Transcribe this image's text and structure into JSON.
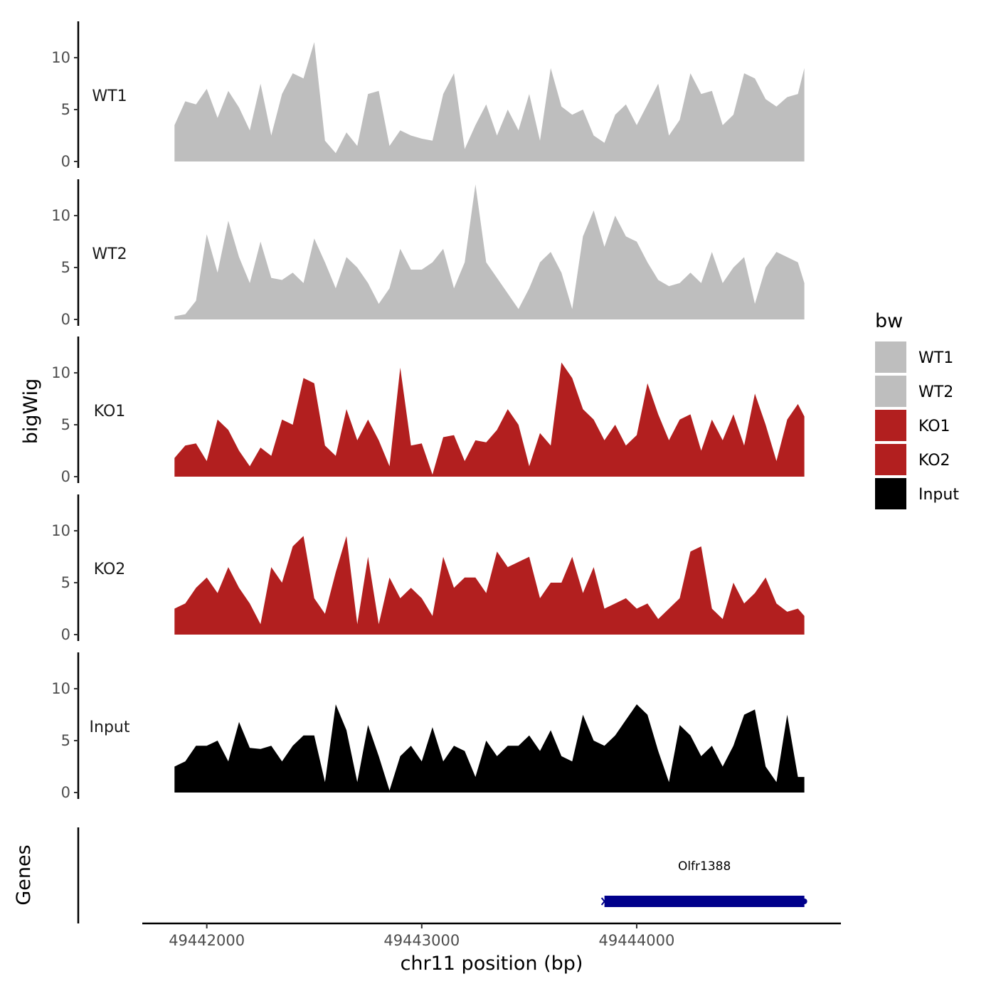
{
  "chart_data": {
    "type": "area",
    "ylabel": "bigWig",
    "xlabel": "chr11 position (bp)",
    "xlim": [
      49441700,
      49444950
    ],
    "ylim": [
      0,
      13.5
    ],
    "y_ticks": [
      0,
      5,
      10
    ],
    "x_ticks": [
      49442000,
      49443000,
      49444000
    ],
    "x_tick_labels": [
      "49442000",
      "49443000",
      "49444000"
    ],
    "gene_panel_label": "Genes",
    "legend": {
      "title": "bw",
      "position": "right",
      "entries": [
        {
          "name": "WT1",
          "color": "#bebebe"
        },
        {
          "name": "WT2",
          "color": "#bebebe"
        },
        {
          "name": "KO1",
          "color": "#b21f1f"
        },
        {
          "name": "KO2",
          "color": "#b21f1f"
        },
        {
          "name": "Input",
          "color": "#000000"
        }
      ]
    },
    "x": [
      49441850,
      49441900,
      49441950,
      49442000,
      49442050,
      49442100,
      49442150,
      49442200,
      49442250,
      49442300,
      49442350,
      49442400,
      49442450,
      49442500,
      49442550,
      49442600,
      49442650,
      49442700,
      49442750,
      49442800,
      49442850,
      49442900,
      49442950,
      49443000,
      49443050,
      49443100,
      49443150,
      49443200,
      49443250,
      49443300,
      49443350,
      49443400,
      49443450,
      49443500,
      49443550,
      49443600,
      49443650,
      49443700,
      49443750,
      49443800,
      49443850,
      49443900,
      49443950,
      49444000,
      49444050,
      49444100,
      49444150,
      49444200,
      49444250,
      49444300,
      49444350,
      49444400,
      49444450,
      49444500,
      49444550,
      49444600,
      49444650,
      49444700,
      49444750,
      49444780
    ],
    "series": [
      {
        "name": "WT1",
        "color": "#bebebe",
        "values": [
          3.5,
          5.8,
          5.5,
          7.0,
          4.2,
          6.8,
          5.2,
          3.0,
          7.5,
          2.5,
          6.5,
          8.5,
          8.0,
          11.5,
          2.0,
          0.8,
          2.8,
          1.5,
          6.5,
          6.8,
          1.5,
          3.0,
          2.5,
          2.2,
          2.0,
          6.5,
          8.5,
          1.2,
          3.5,
          5.5,
          2.5,
          5.0,
          3.0,
          6.5,
          2.0,
          9.0,
          5.3,
          4.5,
          5.0,
          2.5,
          1.8,
          4.5,
          5.5,
          3.5,
          5.5,
          7.5,
          2.5,
          4.0,
          8.5,
          6.5,
          6.8,
          3.5,
          4.5,
          8.5,
          8.0,
          6.0,
          5.3,
          6.2,
          6.5,
          9.0
        ]
      },
      {
        "name": "WT2",
        "color": "#bebebe",
        "values": [
          0.3,
          0.5,
          1.8,
          8.2,
          4.5,
          9.5,
          6.0,
          3.5,
          7.5,
          4.0,
          3.8,
          4.5,
          3.5,
          7.8,
          5.5,
          3.0,
          6.0,
          5.0,
          3.5,
          1.5,
          3.0,
          6.8,
          4.8,
          4.8,
          5.5,
          6.8,
          3.0,
          5.5,
          13.0,
          5.5,
          4.0,
          2.5,
          1.0,
          3.0,
          5.5,
          6.5,
          4.5,
          1.0,
          8.0,
          10.5,
          7.0,
          10.0,
          8.0,
          7.5,
          5.5,
          3.8,
          3.2,
          3.5,
          4.5,
          3.5,
          6.5,
          3.5,
          5.0,
          6.0,
          1.5,
          5.0,
          6.5,
          6.0,
          5.5,
          3.5
        ]
      },
      {
        "name": "KO1",
        "color": "#b21f1f",
        "values": [
          1.8,
          3.0,
          3.2,
          1.5,
          5.5,
          4.5,
          2.5,
          1.0,
          2.8,
          2.0,
          5.5,
          5.0,
          9.5,
          9.0,
          3.0,
          2.0,
          6.5,
          3.5,
          5.5,
          3.5,
          1.0,
          10.5,
          3.0,
          3.2,
          0.2,
          3.8,
          4.0,
          1.5,
          3.5,
          3.3,
          4.5,
          6.5,
          5.0,
          1.0,
          4.2,
          3.0,
          11.0,
          9.5,
          6.5,
          5.5,
          3.5,
          5.0,
          3.0,
          4.0,
          9.0,
          6.0,
          3.5,
          5.5,
          6.0,
          2.5,
          5.5,
          3.5,
          6.0,
          3.0,
          8.0,
          5.0,
          1.5,
          5.5,
          7.0,
          5.8
        ]
      },
      {
        "name": "KO2",
        "color": "#b21f1f",
        "values": [
          2.5,
          3.0,
          4.5,
          5.5,
          4.0,
          6.5,
          4.5,
          3.0,
          1.0,
          6.5,
          5.0,
          8.5,
          9.5,
          3.5,
          2.0,
          6.0,
          9.5,
          1.0,
          7.5,
          1.0,
          5.5,
          3.5,
          4.5,
          3.5,
          1.8,
          7.5,
          4.5,
          5.5,
          5.5,
          4.0,
          8.0,
          6.5,
          7.0,
          7.5,
          3.5,
          5.0,
          5.0,
          7.5,
          4.0,
          6.5,
          2.5,
          3.0,
          3.5,
          2.5,
          3.0,
          1.5,
          2.5,
          3.5,
          8.0,
          8.5,
          2.5,
          1.5,
          5.0,
          3.0,
          4.0,
          5.5,
          3.0,
          2.2,
          2.5,
          1.8
        ]
      },
      {
        "name": "Input",
        "color": "#000000",
        "values": [
          2.5,
          3.0,
          4.5,
          4.5,
          5.0,
          3.0,
          6.8,
          4.3,
          4.2,
          4.5,
          3.0,
          4.5,
          5.5,
          5.5,
          1.0,
          8.5,
          6.0,
          1.0,
          6.5,
          3.5,
          0.2,
          3.5,
          4.5,
          3.0,
          6.3,
          3.0,
          4.5,
          4.0,
          1.5,
          5.0,
          3.5,
          4.5,
          4.5,
          5.5,
          4.0,
          6.0,
          3.5,
          3.0,
          7.5,
          5.0,
          4.5,
          5.5,
          7.0,
          8.5,
          7.5,
          4.0,
          1.0,
          6.5,
          5.5,
          3.5,
          4.5,
          2.5,
          4.5,
          7.5,
          8.0,
          2.5,
          1.0,
          7.5,
          1.5,
          1.5
        ]
      }
    ],
    "genes": [
      {
        "name": "Olfr1388",
        "start": 49443850,
        "end": 49444780,
        "strand": "-",
        "color": "#00008b"
      }
    ]
  }
}
